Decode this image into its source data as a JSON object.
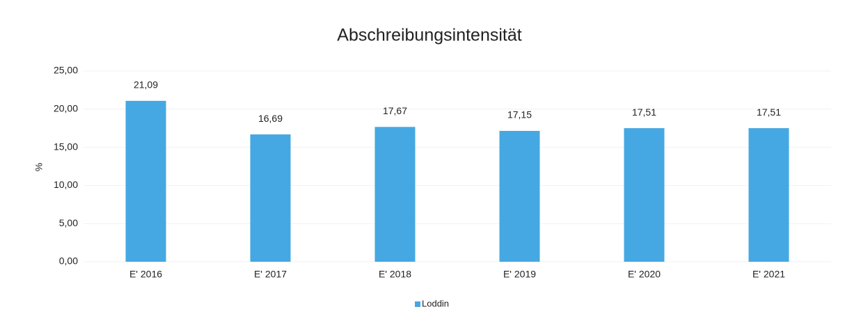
{
  "chart_data": {
    "type": "bar",
    "title": "Abschreibungsintensität",
    "y_label": "%",
    "categories": [
      "E' 2016",
      "E' 2017",
      "E' 2018",
      "E' 2019",
      "E' 2020",
      "E' 2021"
    ],
    "series": [
      {
        "name": "Loddin",
        "color": "#45a8e2",
        "values": [
          21.09,
          16.69,
          17.67,
          17.15,
          17.51,
          17.51
        ],
        "value_labels": [
          "21,09",
          "16,69",
          "17,67",
          "17,15",
          "17,51",
          "17,51"
        ]
      }
    ],
    "ylim": [
      0,
      25
    ],
    "yticks": [
      {
        "value": 0,
        "label": "0,00"
      },
      {
        "value": 5,
        "label": "5,00"
      },
      {
        "value": 10,
        "label": "10,00"
      },
      {
        "value": 15,
        "label": "15,00"
      },
      {
        "value": 20,
        "label": "20,00"
      },
      {
        "value": 25,
        "label": "25,00"
      }
    ],
    "grid": true
  }
}
